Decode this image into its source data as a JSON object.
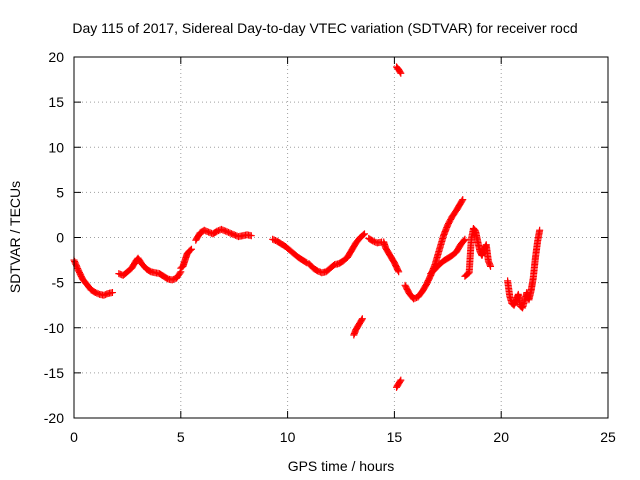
{
  "chart_data": {
    "type": "scatter",
    "title": "Day 115 of 2017, Sidereal Day-to-day VTEC variation (SDTVAR) for receiver rocd",
    "xlabel": "GPS time / hours",
    "ylabel": "SDTVAR / TECUs",
    "xlim": [
      0,
      25
    ],
    "ylim": [
      -20,
      20
    ],
    "xticks": [
      0,
      5,
      10,
      15,
      20,
      25
    ],
    "yticks": [
      -20,
      -15,
      -10,
      -5,
      0,
      5,
      10,
      15,
      20
    ],
    "grid": true,
    "marker": "+",
    "color": "#ff0000",
    "segments": [
      {
        "x": [
          0.0,
          0.2,
          0.4,
          0.6,
          0.8,
          1.0,
          1.2,
          1.4,
          1.6,
          1.8
        ],
        "y": [
          -2.5,
          -3.6,
          -4.6,
          -5.2,
          -5.8,
          -6.1,
          -6.3,
          -6.4,
          -6.2,
          -6.1
        ]
      },
      {
        "x": [
          2.1,
          2.3,
          2.5,
          2.7,
          2.9,
          3.0,
          3.2,
          3.4,
          3.6,
          3.8,
          4.0,
          4.2,
          4.4,
          4.6,
          4.8,
          5.0
        ],
        "y": [
          -4.0,
          -4.2,
          -3.8,
          -3.4,
          -2.6,
          -2.3,
          -3.0,
          -3.5,
          -3.8,
          -3.9,
          -4.0,
          -4.3,
          -4.6,
          -4.7,
          -4.5,
          -3.8
        ]
      },
      {
        "x": [
          5.0,
          5.1,
          5.2,
          5.3,
          5.4,
          5.5
        ],
        "y": [
          -3.4,
          -3.2,
          -2.5,
          -1.8,
          -1.5,
          -1.3
        ]
      },
      {
        "x": [
          5.7,
          5.9,
          6.1,
          6.3,
          6.5,
          6.7,
          6.9,
          7.1,
          7.3,
          7.5,
          7.7,
          7.9,
          8.1,
          8.3
        ],
        "y": [
          -0.3,
          0.5,
          0.8,
          0.6,
          0.4,
          0.7,
          0.9,
          0.7,
          0.5,
          0.3,
          0.1,
          0.2,
          0.3,
          0.2
        ]
      },
      {
        "x": [
          9.3,
          9.5,
          9.7,
          9.9,
          10.1,
          10.3,
          10.5,
          10.7,
          10.9
        ],
        "y": [
          -0.2,
          -0.4,
          -0.7,
          -1.0,
          -1.4,
          -1.8,
          -2.2,
          -2.5,
          -2.8
        ]
      },
      {
        "x": [
          11.0,
          11.2,
          11.4,
          11.6,
          11.8,
          12.0,
          12.2,
          12.4,
          12.6,
          12.8,
          13.0,
          13.2,
          13.4,
          13.6
        ],
        "y": [
          -2.9,
          -3.4,
          -3.7,
          -3.9,
          -3.8,
          -3.4,
          -3.0,
          -2.9,
          -2.6,
          -2.2,
          -1.4,
          -0.6,
          0.0,
          0.4
        ]
      },
      {
        "x": [
          13.8,
          14.0,
          14.2,
          14.4
        ],
        "y": [
          -0.1,
          -0.4,
          -0.6,
          -0.5
        ]
      },
      {
        "x": [
          14.5,
          14.6,
          14.8,
          15.0,
          15.2
        ],
        "y": [
          -0.5,
          -1.2,
          -2.0,
          -2.8,
          -3.8
        ]
      },
      {
        "x": [
          13.1,
          13.2,
          13.3,
          13.4,
          13.5
        ],
        "y": [
          -10.8,
          -10.2,
          -9.8,
          -9.4,
          -9.0
        ]
      },
      {
        "x": [
          15.1,
          15.2,
          15.3
        ],
        "y": [
          18.9,
          18.6,
          18.2
        ]
      },
      {
        "x": [
          15.1,
          15.2,
          15.3
        ],
        "y": [
          -16.6,
          -16.2,
          -15.8
        ]
      },
      {
        "x": [
          15.5,
          15.7,
          15.9,
          16.1,
          16.3,
          16.5,
          16.7,
          16.9,
          17.1,
          17.3,
          17.5,
          17.7,
          17.9,
          18.1,
          18.2
        ],
        "y": [
          -5.3,
          -6.2,
          -6.8,
          -6.6,
          -6.0,
          -5.2,
          -4.2,
          -3.0,
          -1.4,
          0.2,
          1.4,
          2.3,
          3.0,
          3.8,
          4.2
        ]
      },
      {
        "x": [
          16.7,
          16.9,
          17.1,
          17.3,
          17.5,
          17.7,
          17.9,
          18.1,
          18.3
        ],
        "y": [
          -4.0,
          -3.5,
          -3.0,
          -2.6,
          -2.3,
          -2.0,
          -1.6,
          -0.8,
          -0.2
        ]
      },
      {
        "x": [
          18.3,
          18.5,
          18.6,
          18.7,
          18.8,
          18.9,
          19.0,
          19.1,
          19.2,
          19.3,
          19.4,
          19.5
        ],
        "y": [
          -4.3,
          -3.9,
          -0.2,
          1.0,
          0.7,
          -0.4,
          -1.5,
          -2.0,
          -1.3,
          -0.8,
          -2.6,
          -3.2
        ]
      },
      {
        "x": [
          20.3,
          20.4,
          20.5,
          20.6,
          20.7,
          20.8,
          20.9,
          21.0,
          21.1,
          21.2,
          21.3,
          21.4,
          21.5,
          21.6,
          21.7,
          21.8
        ],
        "y": [
          -4.8,
          -6.5,
          -7.3,
          -7.5,
          -7.0,
          -6.3,
          -7.6,
          -7.8,
          -7.0,
          -6.1,
          -6.9,
          -5.9,
          -4.5,
          -2.3,
          -0.5,
          0.8
        ]
      }
    ]
  }
}
